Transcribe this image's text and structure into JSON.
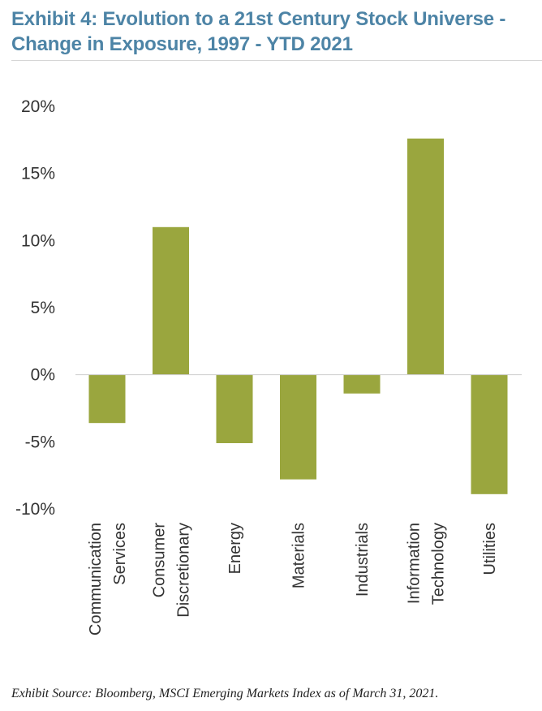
{
  "title": "Exhibit 4: Evolution to a 21st Century Stock Universe - Change in Exposure, 1997 - YTD 2021",
  "source": "Exhibit Source: Bloomberg, MSCI Emerging Markets Index as of March 31, 2021.",
  "colors": {
    "bar": "#9aa63e",
    "title": "#4d84a6",
    "axis": "#333333"
  },
  "chart_data": {
    "type": "bar",
    "title": "Exhibit 4: Evolution to a 21st Century Stock Universe - Change in Exposure, 1997 - YTD 2021",
    "categories": [
      [
        "Communication",
        "Services"
      ],
      [
        "Consumer",
        "Discretionary"
      ],
      [
        "Energy"
      ],
      [
        "Materials"
      ],
      [
        "Industrials"
      ],
      [
        "Information",
        "Technology"
      ],
      [
        "Utilities"
      ]
    ],
    "values": [
      -3.6,
      11.0,
      -5.1,
      -7.8,
      -1.4,
      17.6,
      -8.9
    ],
    "ylim": [
      -10,
      20
    ],
    "yticks": [
      20,
      15,
      10,
      5,
      0,
      -5,
      -10
    ],
    "ytick_labels": [
      "20%",
      "15%",
      "10%",
      "5%",
      "0%",
      "-5%",
      "-10%"
    ],
    "grid": false,
    "xlabel": "",
    "ylabel": ""
  }
}
